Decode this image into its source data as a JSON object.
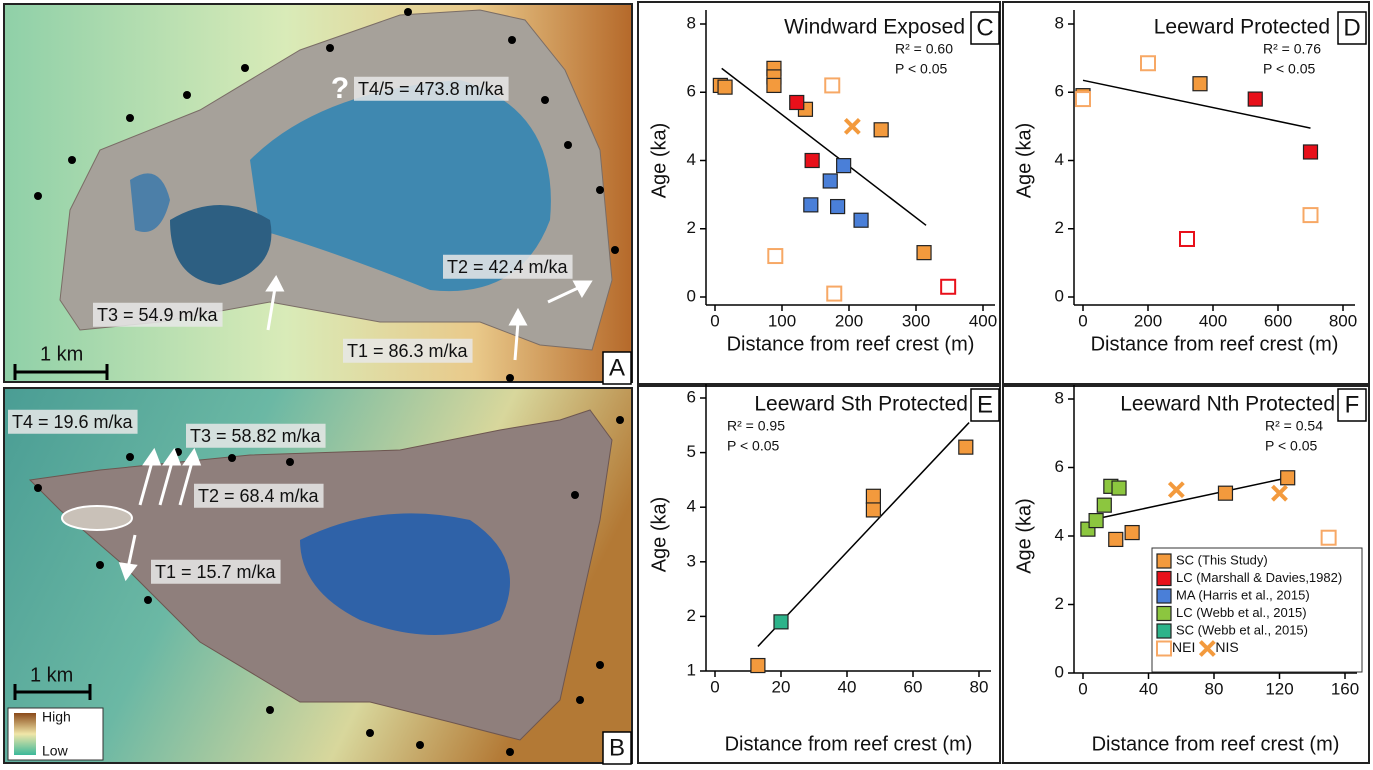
{
  "maps": [
    {
      "panel": "A",
      "question": "?",
      "labels": [
        "T4/5 = 473.8 m/ka",
        "T2 = 42.4 m/ka",
        "T3 = 54.9 m/ka",
        "T1 = 86.3 m/ka"
      ],
      "scale": "1 km"
    },
    {
      "panel": "B",
      "labels": [
        "T4 = 19.6 m/ka",
        "T3 = 58.82 m/ka",
        "T2 = 68.4 m/ka",
        "T1 = 15.7 m/ka"
      ],
      "scale": "1 km",
      "colorbar": {
        "high": "High",
        "low": "Low"
      }
    }
  ],
  "chart_data": [
    {
      "type": "scatter",
      "panel": "C",
      "title": "Windward Exposed",
      "r2": "R² = 0.60",
      "p": "P < 0.05",
      "xlabel": "Distance from reef crest (m)",
      "ylabel": "Age (ka)",
      "xlim": [
        0,
        400
      ],
      "xticks": [
        0,
        100,
        200,
        300,
        400
      ],
      "ylim": [
        0,
        8
      ],
      "yticks": [
        0,
        2,
        4,
        6,
        8
      ],
      "series": [
        {
          "color": "#f39a3d",
          "marker": "square",
          "x": [
            8,
            15,
            88,
            88,
            88,
            135,
            248,
            312
          ],
          "y": [
            6.2,
            6.15,
            6.7,
            6.45,
            6.2,
            5.5,
            4.9,
            1.3
          ]
        },
        {
          "color": "#e8101a",
          "marker": "square",
          "x": [
            122,
            145
          ],
          "y": [
            5.7,
            4.0
          ]
        },
        {
          "color": "#4a7fd8",
          "marker": "square",
          "x": [
            172,
            192,
            143,
            183,
            218
          ],
          "y": [
            3.4,
            3.85,
            2.7,
            2.65,
            2.25
          ]
        },
        {
          "color": "#f7a865",
          "marker": "open-square",
          "x": [
            175,
            90,
            178
          ],
          "y": [
            6.2,
            1.2,
            0.1
          ]
        },
        {
          "color": "#e8101a",
          "marker": "open-square",
          "x": [
            348
          ],
          "y": [
            0.3
          ]
        },
        {
          "color": "#f39a3d",
          "marker": "x",
          "x": [
            205
          ],
          "y": [
            5.0
          ]
        }
      ],
      "trendline": {
        "x": [
          10,
          315
        ],
        "y": [
          6.7,
          2.1
        ]
      }
    },
    {
      "type": "scatter",
      "panel": "D",
      "title": "Leeward Protected",
      "r2": "R² = 0.76",
      "p": "P < 0.05",
      "xlabel": "Distance from reef crest (m)",
      "ylabel": "Age (ka)",
      "xlim": [
        0,
        800
      ],
      "xticks": [
        0,
        200,
        400,
        600,
        800
      ],
      "ylim": [
        0,
        8
      ],
      "yticks": [
        0,
        2,
        4,
        6,
        8
      ],
      "series": [
        {
          "color": "#f39a3d",
          "marker": "square",
          "x": [
            0,
            360
          ],
          "y": [
            5.9,
            6.25
          ]
        },
        {
          "color": "#e8101a",
          "marker": "square",
          "x": [
            530,
            700
          ],
          "y": [
            5.8,
            4.25
          ]
        },
        {
          "color": "#f7a865",
          "marker": "open-square",
          "x": [
            0,
            200,
            700
          ],
          "y": [
            5.8,
            6.85,
            2.4
          ]
        },
        {
          "color": "#e8101a",
          "marker": "open-square",
          "x": [
            320
          ],
          "y": [
            1.7
          ]
        }
      ],
      "trendline": {
        "x": [
          0,
          700
        ],
        "y": [
          6.35,
          4.95
        ]
      }
    },
    {
      "type": "scatter",
      "panel": "E",
      "title": "Leeward Sth Protected",
      "r2": "R² = 0.95",
      "p": "P < 0.05",
      "xlabel": "Distance from reef crest (m)",
      "ylabel": "Age (ka)",
      "xlim": [
        0,
        80
      ],
      "xticks": [
        0,
        20,
        40,
        60,
        80
      ],
      "ylim": [
        1,
        6
      ],
      "yticks": [
        1,
        2,
        3,
        4,
        5,
        6
      ],
      "series": [
        {
          "color": "#f39a3d",
          "marker": "square",
          "x": [
            13,
            48,
            48,
            76
          ],
          "y": [
            1.1,
            4.2,
            3.95,
            5.1
          ]
        },
        {
          "color": "#2db38a",
          "marker": "square",
          "x": [
            20
          ],
          "y": [
            1.9
          ]
        }
      ],
      "trendline": {
        "x": [
          13,
          77
        ],
        "y": [
          1.45,
          5.55
        ]
      }
    },
    {
      "type": "scatter",
      "panel": "F",
      "title": "Leeward Nth Protected",
      "r2": "R² = 0.54",
      "p": "P < 0.05",
      "xlabel": "Distance from reef crest (m)",
      "ylabel": "Age (ka)",
      "xlim": [
        0,
        160
      ],
      "xticks": [
        0,
        40,
        80,
        120,
        160
      ],
      "ylim": [
        0,
        8
      ],
      "yticks": [
        0,
        2,
        4,
        6,
        8
      ],
      "series": [
        {
          "color": "#8cc63f",
          "marker": "square",
          "x": [
            3,
            8,
            13,
            17,
            22
          ],
          "y": [
            4.2,
            4.45,
            4.9,
            5.45,
            5.4
          ]
        },
        {
          "color": "#f39a3d",
          "marker": "square",
          "x": [
            20,
            30,
            87,
            125
          ],
          "y": [
            3.9,
            4.1,
            5.25,
            5.7
          ]
        },
        {
          "color": "#f39a3d",
          "marker": "x",
          "x": [
            57,
            120
          ],
          "y": [
            5.35,
            5.25
          ]
        },
        {
          "color": "#f7a865",
          "marker": "open-square",
          "x": [
            150
          ],
          "y": [
            3.95
          ]
        }
      ],
      "trendline": {
        "x": [
          8,
          125
        ],
        "y": [
          4.5,
          5.7
        ]
      },
      "legend": [
        {
          "name": "SC (This Study)",
          "color": "#f39a3d",
          "marker": "square"
        },
        {
          "name": "LC (Marshall & Davies,1982)",
          "color": "#e8101a",
          "marker": "square"
        },
        {
          "name": "MA (Harris et al., 2015)",
          "color": "#4a7fd8",
          "marker": "square"
        },
        {
          "name": "LC (Webb et al., 2015)",
          "color": "#8cc63f",
          "marker": "square"
        },
        {
          "name": "SC (Webb et al., 2015)",
          "color": "#2db38a",
          "marker": "square"
        },
        {
          "name": "NEI",
          "color": "#f7a865",
          "marker": "open-square"
        },
        {
          "name": "NIS",
          "color": "#f39a3d",
          "marker": "x"
        }
      ]
    }
  ]
}
